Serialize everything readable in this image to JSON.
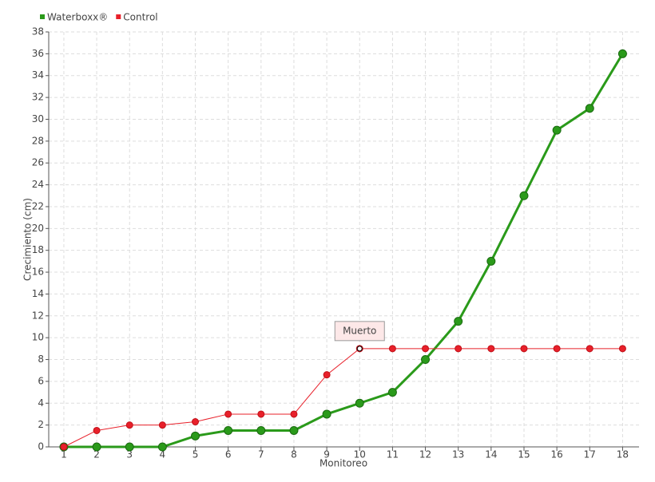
{
  "chart_data": {
    "type": "line",
    "x": [
      1,
      2,
      3,
      4,
      5,
      6,
      7,
      8,
      9,
      10,
      11,
      12,
      13,
      14,
      15,
      16,
      17,
      18
    ],
    "xlim": [
      0.54,
      18.5
    ],
    "xticks": [
      1,
      2,
      3,
      4,
      5,
      6,
      7,
      8,
      9,
      10,
      11,
      12,
      13,
      14,
      15,
      16,
      17,
      18
    ],
    "ylim": [
      0,
      38
    ],
    "yticks": [
      0,
      2,
      4,
      6,
      8,
      10,
      12,
      14,
      16,
      18,
      20,
      22,
      24,
      26,
      28,
      30,
      32,
      34,
      36,
      38
    ],
    "grid": true,
    "legend": "top-left",
    "x_label": "Monitoreo",
    "y_label": "Crecimiento (cm)",
    "series": [
      {
        "name": "Waterboxx®",
        "color": "#2a9a1a",
        "values": [
          0,
          0,
          0,
          0,
          1,
          1.5,
          1.5,
          1.5,
          3,
          4,
          5,
          8,
          11.5,
          17,
          23,
          29,
          31,
          36
        ]
      },
      {
        "name": "Control",
        "color": "#e8202a",
        "values": [
          0,
          1.5,
          2,
          2,
          2.3,
          3,
          3,
          3,
          6.6,
          9,
          9,
          9,
          9,
          9,
          9,
          9,
          9,
          9
        ]
      }
    ],
    "annotations": [
      {
        "text": "Muerto",
        "x": 10,
        "y": 9
      }
    ]
  }
}
